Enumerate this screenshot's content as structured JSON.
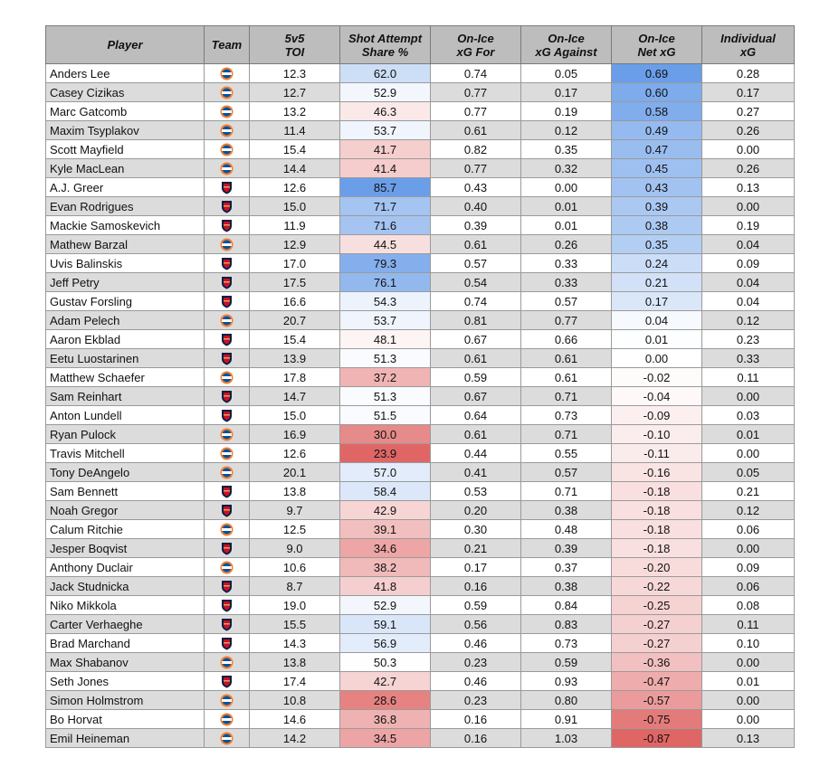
{
  "chart_data": {
    "type": "table",
    "columns": [
      {
        "key": "player",
        "label_l1": "Player",
        "label_l2": ""
      },
      {
        "key": "team",
        "label_l1": "Team",
        "label_l2": ""
      },
      {
        "key": "toi",
        "label_l1": "5v5",
        "label_l2": "TOI"
      },
      {
        "key": "sa_share",
        "label_l1": "Shot Attempt",
        "label_l2": "Share %"
      },
      {
        "key": "xgf",
        "label_l1": "On-Ice",
        "label_l2": "xG For"
      },
      {
        "key": "xga",
        "label_l1": "On-Ice",
        "label_l2": "xG Against"
      },
      {
        "key": "net_xg",
        "label_l1": "On-Ice",
        "label_l2": "Net xG"
      },
      {
        "key": "ixg",
        "label_l1": "Individual",
        "label_l2": "xG"
      }
    ],
    "team_logos": {
      "NYI": {
        "icon": "new-york-islanders-logo",
        "color": "#f47d30",
        "accent": "#00539b"
      },
      "FLA": {
        "icon": "florida-panthers-logo",
        "color": "#041e42",
        "accent": "#c8102e"
      }
    },
    "heat_colors": {
      "high": "#6a9ee8",
      "mid": "#ffffff",
      "low": "#e06666"
    },
    "rows": [
      {
        "player": "Anders Lee",
        "team": "NYI",
        "toi": "12.3",
        "sa_share": "62.0",
        "xgf": "0.74",
        "xga": "0.05",
        "net_xg": "0.69",
        "ixg": "0.28"
      },
      {
        "player": "Casey Cizikas",
        "team": "NYI",
        "toi": "12.7",
        "sa_share": "52.9",
        "xgf": "0.77",
        "xga": "0.17",
        "net_xg": "0.60",
        "ixg": "0.17"
      },
      {
        "player": "Marc Gatcomb",
        "team": "NYI",
        "toi": "13.2",
        "sa_share": "46.3",
        "xgf": "0.77",
        "xga": "0.19",
        "net_xg": "0.58",
        "ixg": "0.27"
      },
      {
        "player": "Maxim Tsyplakov",
        "team": "NYI",
        "toi": "11.4",
        "sa_share": "53.7",
        "xgf": "0.61",
        "xga": "0.12",
        "net_xg": "0.49",
        "ixg": "0.26"
      },
      {
        "player": "Scott Mayfield",
        "team": "NYI",
        "toi": "15.4",
        "sa_share": "41.7",
        "xgf": "0.82",
        "xga": "0.35",
        "net_xg": "0.47",
        "ixg": "0.00"
      },
      {
        "player": "Kyle MacLean",
        "team": "NYI",
        "toi": "14.4",
        "sa_share": "41.4",
        "xgf": "0.77",
        "xga": "0.32",
        "net_xg": "0.45",
        "ixg": "0.26"
      },
      {
        "player": "A.J. Greer",
        "team": "FLA",
        "toi": "12.6",
        "sa_share": "85.7",
        "xgf": "0.43",
        "xga": "0.00",
        "net_xg": "0.43",
        "ixg": "0.13"
      },
      {
        "player": "Evan Rodrigues",
        "team": "FLA",
        "toi": "15.0",
        "sa_share": "71.7",
        "xgf": "0.40",
        "xga": "0.01",
        "net_xg": "0.39",
        "ixg": "0.00"
      },
      {
        "player": "Mackie Samoskevich",
        "team": "FLA",
        "toi": "11.9",
        "sa_share": "71.6",
        "xgf": "0.39",
        "xga": "0.01",
        "net_xg": "0.38",
        "ixg": "0.19"
      },
      {
        "player": "Mathew Barzal",
        "team": "NYI",
        "toi": "12.9",
        "sa_share": "44.5",
        "xgf": "0.61",
        "xga": "0.26",
        "net_xg": "0.35",
        "ixg": "0.04"
      },
      {
        "player": "Uvis Balinskis",
        "team": "FLA",
        "toi": "17.0",
        "sa_share": "79.3",
        "xgf": "0.57",
        "xga": "0.33",
        "net_xg": "0.24",
        "ixg": "0.09"
      },
      {
        "player": "Jeff Petry",
        "team": "FLA",
        "toi": "17.5",
        "sa_share": "76.1",
        "xgf": "0.54",
        "xga": "0.33",
        "net_xg": "0.21",
        "ixg": "0.04"
      },
      {
        "player": "Gustav Forsling",
        "team": "FLA",
        "toi": "16.6",
        "sa_share": "54.3",
        "xgf": "0.74",
        "xga": "0.57",
        "net_xg": "0.17",
        "ixg": "0.04"
      },
      {
        "player": "Adam Pelech",
        "team": "NYI",
        "toi": "20.7",
        "sa_share": "53.7",
        "xgf": "0.81",
        "xga": "0.77",
        "net_xg": "0.04",
        "ixg": "0.12"
      },
      {
        "player": "Aaron Ekblad",
        "team": "FLA",
        "toi": "15.4",
        "sa_share": "48.1",
        "xgf": "0.67",
        "xga": "0.66",
        "net_xg": "0.01",
        "ixg": "0.23"
      },
      {
        "player": "Eetu Luostarinen",
        "team": "FLA",
        "toi": "13.9",
        "sa_share": "51.3",
        "xgf": "0.61",
        "xga": "0.61",
        "net_xg": "0.00",
        "ixg": "0.33"
      },
      {
        "player": "Matthew Schaefer",
        "team": "NYI",
        "toi": "17.8",
        "sa_share": "37.2",
        "xgf": "0.59",
        "xga": "0.61",
        "net_xg": "-0.02",
        "ixg": "0.11"
      },
      {
        "player": "Sam Reinhart",
        "team": "FLA",
        "toi": "14.7",
        "sa_share": "51.3",
        "xgf": "0.67",
        "xga": "0.71",
        "net_xg": "-0.04",
        "ixg": "0.00"
      },
      {
        "player": "Anton Lundell",
        "team": "FLA",
        "toi": "15.0",
        "sa_share": "51.5",
        "xgf": "0.64",
        "xga": "0.73",
        "net_xg": "-0.09",
        "ixg": "0.03"
      },
      {
        "player": "Ryan Pulock",
        "team": "NYI",
        "toi": "16.9",
        "sa_share": "30.0",
        "xgf": "0.61",
        "xga": "0.71",
        "net_xg": "-0.10",
        "ixg": "0.01"
      },
      {
        "player": "Travis Mitchell",
        "team": "NYI",
        "toi": "12.6",
        "sa_share": "23.9",
        "xgf": "0.44",
        "xga": "0.55",
        "net_xg": "-0.11",
        "ixg": "0.00"
      },
      {
        "player": "Tony DeAngelo",
        "team": "NYI",
        "toi": "20.1",
        "sa_share": "57.0",
        "xgf": "0.41",
        "xga": "0.57",
        "net_xg": "-0.16",
        "ixg": "0.05"
      },
      {
        "player": "Sam Bennett",
        "team": "FLA",
        "toi": "13.8",
        "sa_share": "58.4",
        "xgf": "0.53",
        "xga": "0.71",
        "net_xg": "-0.18",
        "ixg": "0.21"
      },
      {
        "player": "Noah Gregor",
        "team": "FLA",
        "toi": "9.7",
        "sa_share": "42.9",
        "xgf": "0.20",
        "xga": "0.38",
        "net_xg": "-0.18",
        "ixg": "0.12"
      },
      {
        "player": "Calum Ritchie",
        "team": "NYI",
        "toi": "12.5",
        "sa_share": "39.1",
        "xgf": "0.30",
        "xga": "0.48",
        "net_xg": "-0.18",
        "ixg": "0.06"
      },
      {
        "player": "Jesper Boqvist",
        "team": "FLA",
        "toi": "9.0",
        "sa_share": "34.6",
        "xgf": "0.21",
        "xga": "0.39",
        "net_xg": "-0.18",
        "ixg": "0.00"
      },
      {
        "player": "Anthony Duclair",
        "team": "NYI",
        "toi": "10.6",
        "sa_share": "38.2",
        "xgf": "0.17",
        "xga": "0.37",
        "net_xg": "-0.20",
        "ixg": "0.09"
      },
      {
        "player": "Jack Studnicka",
        "team": "FLA",
        "toi": "8.7",
        "sa_share": "41.8",
        "xgf": "0.16",
        "xga": "0.38",
        "net_xg": "-0.22",
        "ixg": "0.06"
      },
      {
        "player": "Niko Mikkola",
        "team": "FLA",
        "toi": "19.0",
        "sa_share": "52.9",
        "xgf": "0.59",
        "xga": "0.84",
        "net_xg": "-0.25",
        "ixg": "0.08"
      },
      {
        "player": "Carter Verhaeghe",
        "team": "FLA",
        "toi": "15.5",
        "sa_share": "59.1",
        "xgf": "0.56",
        "xga": "0.83",
        "net_xg": "-0.27",
        "ixg": "0.11"
      },
      {
        "player": "Brad Marchand",
        "team": "FLA",
        "toi": "14.3",
        "sa_share": "56.9",
        "xgf": "0.46",
        "xga": "0.73",
        "net_xg": "-0.27",
        "ixg": "0.10"
      },
      {
        "player": "Max Shabanov",
        "team": "NYI",
        "toi": "13.8",
        "sa_share": "50.3",
        "xgf": "0.23",
        "xga": "0.59",
        "net_xg": "-0.36",
        "ixg": "0.00"
      },
      {
        "player": "Seth Jones",
        "team": "FLA",
        "toi": "17.4",
        "sa_share": "42.7",
        "xgf": "0.46",
        "xga": "0.93",
        "net_xg": "-0.47",
        "ixg": "0.01"
      },
      {
        "player": "Simon Holmstrom",
        "team": "NYI",
        "toi": "10.8",
        "sa_share": "28.6",
        "xgf": "0.23",
        "xga": "0.80",
        "net_xg": "-0.57",
        "ixg": "0.00"
      },
      {
        "player": "Bo Horvat",
        "team": "NYI",
        "toi": "14.6",
        "sa_share": "36.8",
        "xgf": "0.16",
        "xga": "0.91",
        "net_xg": "-0.75",
        "ixg": "0.00"
      },
      {
        "player": "Emil Heineman",
        "team": "NYI",
        "toi": "14.2",
        "sa_share": "34.5",
        "xgf": "0.16",
        "xga": "1.03",
        "net_xg": "-0.87",
        "ixg": "0.13"
      }
    ]
  }
}
